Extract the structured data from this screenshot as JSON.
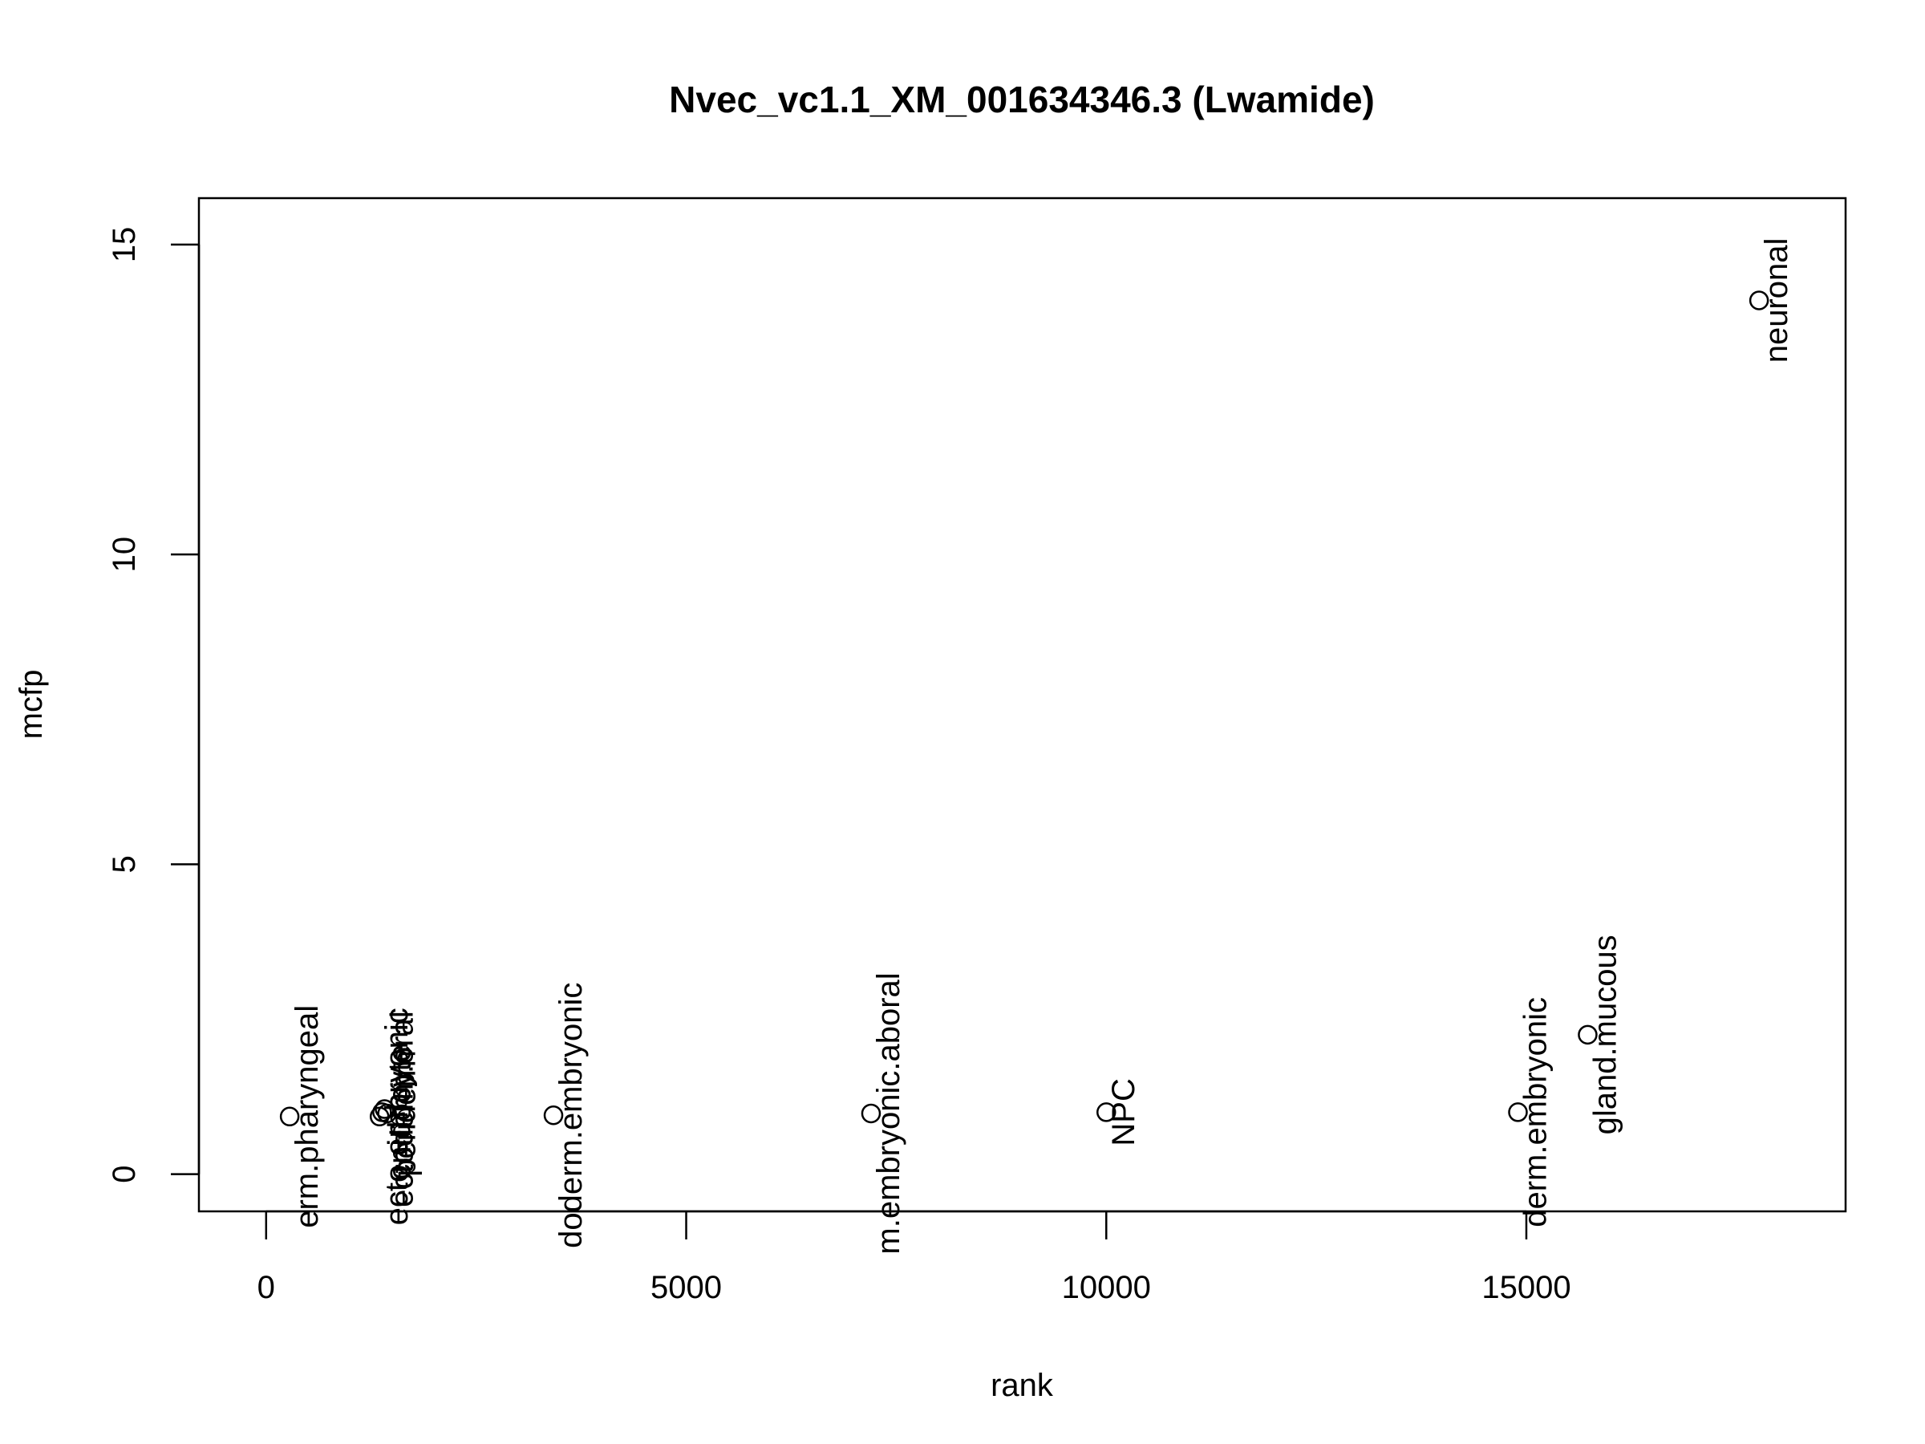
{
  "chart_data": {
    "type": "scatter",
    "title": "Nvec_vc1.1_XM_001634346.3 (Lwamide)",
    "xlabel": "rank",
    "ylabel": "mcfp",
    "xlim": [
      -800,
      18800
    ],
    "ylim": [
      -0.6,
      15.75
    ],
    "x_ticks": [
      0,
      5000,
      10000,
      15000
    ],
    "x_tick_labels": [
      "0",
      "5000",
      "10000",
      "15000"
    ],
    "y_ticks": [
      0,
      5,
      10,
      15
    ],
    "y_tick_labels": [
      "0",
      "5",
      "10",
      "15"
    ],
    "grid": false,
    "legend": "none",
    "point_color": "#000000",
    "points": [
      {
        "x": 280,
        "y": 0.93,
        "label": "erm.pharyngeal"
      },
      {
        "x": 1350,
        "y": 0.93,
        "label": "ecto.embryonic"
      },
      {
        "x": 1380,
        "y": 1.0,
        "label": "cnidocyte"
      },
      {
        "x": 1410,
        "y": 1.05,
        "label": "ectoderm.oral"
      },
      {
        "x": 1440,
        "y": 0.98,
        "label": "periderm"
      },
      {
        "x": 3420,
        "y": 0.95,
        "label": "doderm.embryonic"
      },
      {
        "x": 7200,
        "y": 0.98,
        "label": "m.embryonic.aboral"
      },
      {
        "x": 10000,
        "y": 1.0,
        "label": "NPC"
      },
      {
        "x": 14900,
        "y": 1.0,
        "label": "derm.embryonic"
      },
      {
        "x": 15730,
        "y": 2.25,
        "label": "gland.mucous"
      },
      {
        "x": 17770,
        "y": 14.1,
        "label": "neuronal"
      }
    ]
  }
}
